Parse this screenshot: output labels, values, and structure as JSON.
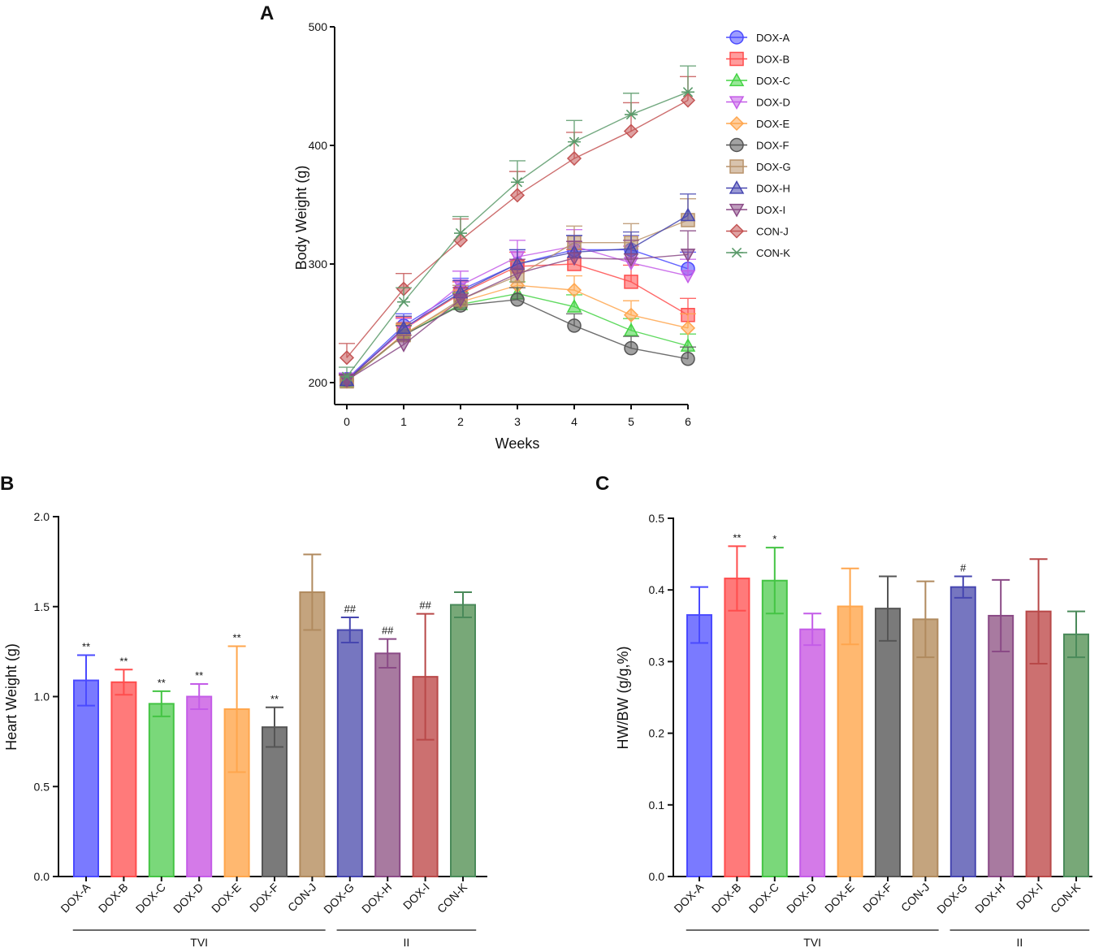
{
  "chart_data": [
    {
      "panel": "A",
      "type": "line",
      "xlabel": "Weeks",
      "ylabel": "Body Weight (g)",
      "x": [
        0,
        1,
        2,
        3,
        4,
        5,
        6
      ],
      "xticks": [
        "0",
        "1",
        "2",
        "3",
        "4",
        "5",
        "6"
      ],
      "ylim": [
        200,
        500
      ],
      "yticks": [
        "200",
        "300",
        "400",
        "500"
      ],
      "series": [
        {
          "name": "DOX-A",
          "color": "#4a4aff",
          "marker": "circle",
          "values": [
            203,
            248,
            278,
            300,
            312,
            312,
            296
          ],
          "errors": [
            5,
            10,
            10,
            12,
            12,
            12,
            14
          ]
        },
        {
          "name": "DOX-B",
          "color": "#ff4d4d",
          "marker": "square",
          "values": [
            202,
            245,
            275,
            298,
            300,
            285,
            257
          ],
          "errors": [
            5,
            10,
            10,
            12,
            12,
            14,
            14
          ]
        },
        {
          "name": "DOX-C",
          "color": "#44d444",
          "marker": "triangle-up",
          "values": [
            201,
            240,
            266,
            275,
            264,
            244,
            231
          ],
          "errors": [
            5,
            8,
            10,
            10,
            10,
            10,
            10
          ]
        },
        {
          "name": "DOX-D",
          "color": "#c45ce8",
          "marker": "triangle-down",
          "values": [
            203,
            244,
            282,
            306,
            315,
            301,
            290
          ],
          "errors": [
            5,
            10,
            12,
            14,
            14,
            14,
            14
          ]
        },
        {
          "name": "DOX-E",
          "color": "#ffa64d",
          "marker": "diamond",
          "values": [
            201,
            241,
            268,
            282,
            278,
            257,
            246
          ],
          "errors": [
            5,
            8,
            10,
            12,
            12,
            12,
            12
          ]
        },
        {
          "name": "DOX-F",
          "color": "#555555",
          "marker": "circle",
          "values": [
            202,
            240,
            265,
            270,
            248,
            229,
            220
          ],
          "errors": [
            5,
            8,
            10,
            10,
            10,
            10,
            10
          ]
        },
        {
          "name": "DOX-G",
          "color": "#b8926a",
          "marker": "square",
          "values": [
            201,
            240,
            270,
            290,
            318,
            318,
            337
          ],
          "errors": [
            5,
            10,
            12,
            12,
            14,
            16,
            18
          ]
        },
        {
          "name": "DOX-H",
          "color": "#4646b0",
          "marker": "triangle-up",
          "values": [
            202,
            246,
            276,
            300,
            310,
            313,
            341
          ],
          "errors": [
            5,
            10,
            10,
            12,
            14,
            14,
            18
          ]
        },
        {
          "name": "DOX-I",
          "color": "#8a4a86",
          "marker": "triangle-down",
          "values": [
            202,
            232,
            270,
            292,
            305,
            304,
            308
          ],
          "errors": [
            5,
            8,
            10,
            12,
            14,
            16,
            20
          ]
        },
        {
          "name": "CON-J",
          "color": "#c45555",
          "marker": "diamond",
          "values": [
            221,
            279,
            320,
            358,
            389,
            412,
            438
          ],
          "errors": [
            12,
            13,
            18,
            20,
            22,
            24,
            20
          ]
        },
        {
          "name": "CON-K",
          "color": "#5a9a6a",
          "marker": "asterisk",
          "values": [
            205,
            268,
            326,
            369,
            403,
            426,
            445
          ],
          "errors": [
            8,
            12,
            14,
            18,
            18,
            18,
            22
          ]
        }
      ]
    },
    {
      "panel": "B",
      "type": "bar",
      "ylabel": "Heart Weight (g)",
      "ylim": [
        0,
        2.0
      ],
      "yticks": [
        "0.0",
        "0.5",
        "1.0",
        "1.5",
        "2.0"
      ],
      "categories": [
        "DOX-A",
        "DOX-B",
        "DOX-C",
        "DOX-D",
        "DOX-E",
        "DOX-F",
        "CON-J",
        "DOX-G",
        "DOX-H",
        "DOX-I",
        "CON-K"
      ],
      "values": [
        1.09,
        1.08,
        0.96,
        1.0,
        0.93,
        0.83,
        1.58,
        1.37,
        1.24,
        1.11,
        1.51
      ],
      "errors": [
        0.14,
        0.07,
        0.07,
        0.07,
        0.35,
        0.11,
        0.21,
        0.07,
        0.08,
        0.35,
        0.07
      ],
      "annotations": [
        "**",
        "**",
        "**",
        "**",
        "**",
        "**",
        "",
        "##",
        "##",
        "##",
        ""
      ],
      "groups": [
        {
          "label": "TVI",
          "from": 0,
          "to": 6
        },
        {
          "label": "II",
          "from": 7,
          "to": 10
        }
      ]
    },
    {
      "panel": "C",
      "type": "bar",
      "ylabel": "HW/BW (g/g,%)",
      "ylim": [
        0,
        0.5
      ],
      "yticks": [
        "0.0",
        "0.1",
        "0.2",
        "0.3",
        "0.4",
        "0.5"
      ],
      "categories": [
        "DOX-A",
        "DOX-B",
        "DOX-C",
        "DOX-D",
        "DOX-E",
        "DOX-F",
        "CON-J",
        "DOX-G",
        "DOX-H",
        "DOX-I",
        "CON-K"
      ],
      "values": [
        0.365,
        0.416,
        0.413,
        0.345,
        0.377,
        0.374,
        0.359,
        0.404,
        0.364,
        0.37,
        0.338
      ],
      "errors": [
        0.039,
        0.045,
        0.046,
        0.022,
        0.053,
        0.045,
        0.053,
        0.015,
        0.05,
        0.073,
        0.032
      ],
      "annotations": [
        "",
        "**",
        "*",
        "",
        "",
        "",
        "",
        "#",
        "",
        "",
        ""
      ],
      "groups": [
        {
          "label": "TVI",
          "from": 0,
          "to": 6
        },
        {
          "label": "II",
          "from": 7,
          "to": 10
        }
      ]
    }
  ],
  "bar_colors": [
    "#7a7aff",
    "#ff7a7a",
    "#7ad87a",
    "#d47ae8",
    "#ffb870",
    "#7a7a7a",
    "#c4a47e",
    "#7676c0",
    "#a87aa0",
    "#cc7070",
    "#78a878"
  ],
  "bar_edge_colors": [
    "#4a4aff",
    "#ff4d4d",
    "#44c444",
    "#c45ce8",
    "#ffa64d",
    "#555555",
    "#b08a5e",
    "#4646b0",
    "#8a4a86",
    "#b84848",
    "#4a8a5a"
  ]
}
